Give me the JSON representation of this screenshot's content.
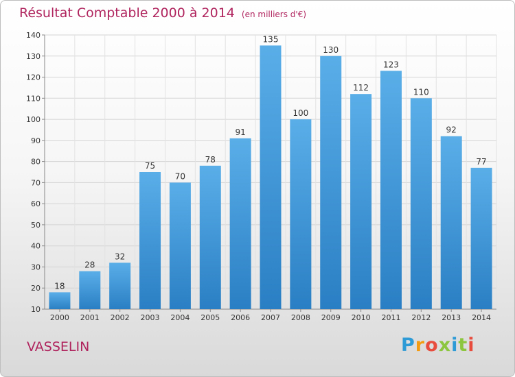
{
  "header": {
    "title": "Résultat Comptable 2000 à 2014",
    "subtitle": "(en milliers d'€)"
  },
  "footer": {
    "location": "VASSELIN",
    "logo_text": "Proxiti",
    "logo_colors": [
      "#2e9bd6",
      "#f39c12",
      "#e74c3c",
      "#8cc63f",
      "#2e9bd6",
      "#8cc63f",
      "#e74c3c"
    ]
  },
  "chart_data": {
    "type": "bar",
    "title": "Résultat Comptable 2000 à 2014",
    "subtitle": "(en milliers d'€)",
    "categories": [
      "2000",
      "2001",
      "2002",
      "2003",
      "2004",
      "2005",
      "2006",
      "2007",
      "2008",
      "2009",
      "2010",
      "2011",
      "2012",
      "2013",
      "2014"
    ],
    "values": [
      18,
      28,
      32,
      75,
      70,
      78,
      91,
      135,
      100,
      130,
      112,
      123,
      110,
      92,
      77
    ],
    "ylim": [
      10,
      140
    ],
    "yticks": [
      10,
      20,
      30,
      40,
      50,
      60,
      70,
      80,
      90,
      100,
      110,
      120,
      130,
      140
    ],
    "grid": true,
    "data_labels": true,
    "bar_color_top": "#5aaee8",
    "bar_color_bottom": "#2a7fc4",
    "title_color": "#b0245e"
  }
}
